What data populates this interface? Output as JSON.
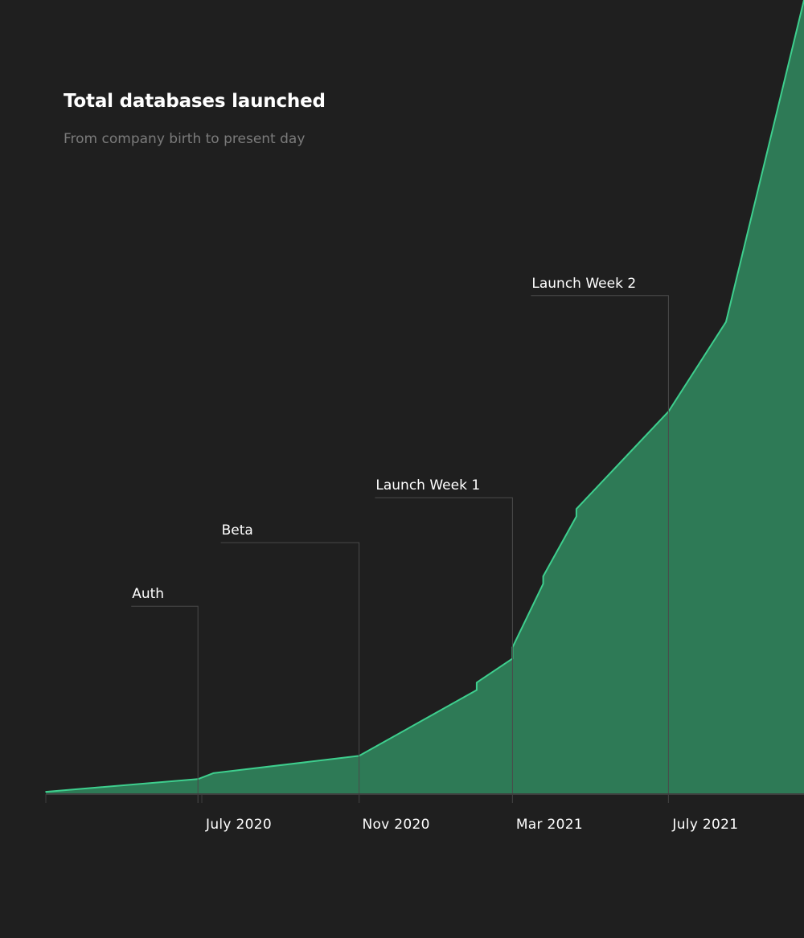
{
  "chart_data": {
    "type": "area",
    "title": "Total databases launched",
    "subtitle": "From company birth to present day",
    "x_start": "2020-03-01",
    "x_end": "2021-10-15",
    "x_ticks": [
      {
        "label": "July 2020",
        "date": "2020-07-01"
      },
      {
        "label": "Nov 2020",
        "date": "2020-11-01"
      },
      {
        "label": "Mar 2021",
        "date": "2021-03-01"
      },
      {
        "label": "July 2021",
        "date": "2021-07-01"
      }
    ],
    "series": [
      {
        "points": [
          {
            "x": "2020-03-01",
            "y": 0.2
          },
          {
            "x": "2020-06-28",
            "y": 1.9
          },
          {
            "x": "2020-07-10",
            "y": 2.7
          },
          {
            "x": "2020-11-01",
            "y": 5.0
          },
          {
            "x": "2021-02-01",
            "y": 13.8
          },
          {
            "x": "2021-02-01",
            "y": 14.8
          },
          {
            "x": "2021-03-01",
            "y": 18.0
          },
          {
            "x": "2021-03-01",
            "y": 19.5
          },
          {
            "x": "2021-03-25",
            "y": 28.0
          },
          {
            "x": "2021-03-25",
            "y": 29.0
          },
          {
            "x": "2021-04-20",
            "y": 37.0
          },
          {
            "x": "2021-04-20",
            "y": 38.0
          },
          {
            "x": "2021-07-01",
            "y": 51.0
          },
          {
            "x": "2021-08-15",
            "y": 63.0
          },
          {
            "x": "2021-10-15",
            "y": 106.0
          }
        ]
      }
    ],
    "annotations": [
      {
        "label": "Auth",
        "date": "2020-06-28",
        "level": 25.0
      },
      {
        "label": "Beta",
        "date": "2020-11-01",
        "level": 33.5
      },
      {
        "label": "Launch Week 1",
        "date": "2021-03-01",
        "level": 39.5
      },
      {
        "label": "Launch Week 2",
        "date": "2021-07-01",
        "level": 66.5
      }
    ],
    "ylim": [
      0,
      106
    ],
    "grid": false,
    "colors": {
      "background": "#1f1f1f",
      "line": "#3ecf8e",
      "fill": "#2e7a56",
      "axis": "#3e3e3e",
      "annotation_line": "#4a4a4a",
      "text": "#ffffff",
      "subtitle": "#7b7b7b"
    }
  }
}
